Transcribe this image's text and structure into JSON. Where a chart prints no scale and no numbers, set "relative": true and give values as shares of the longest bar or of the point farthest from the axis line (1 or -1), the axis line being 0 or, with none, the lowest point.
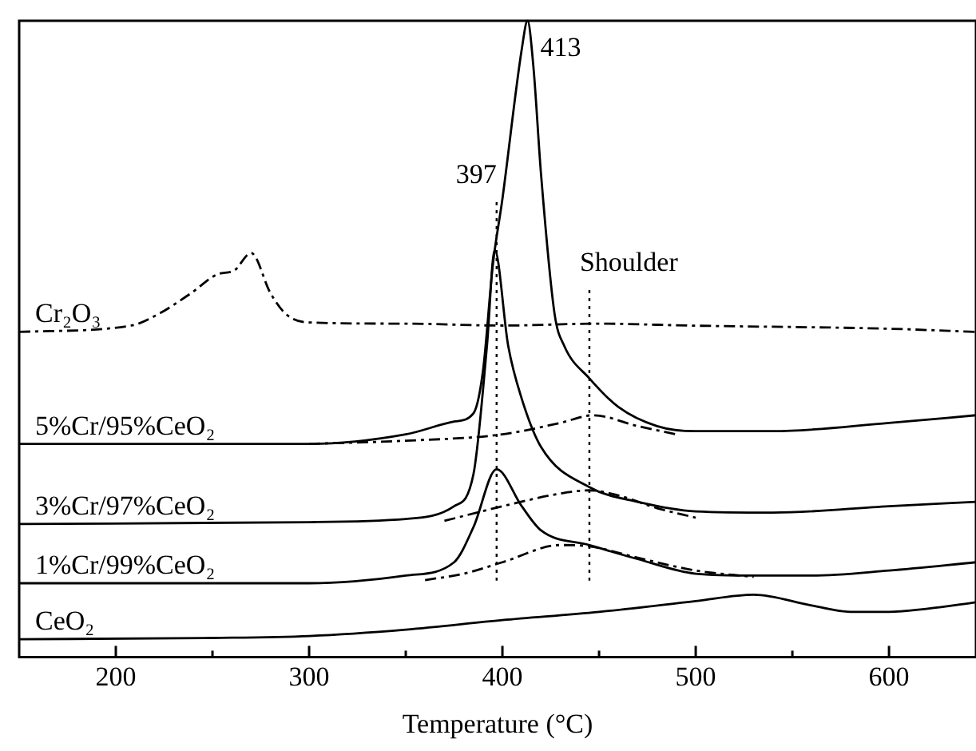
{
  "chart_data": {
    "type": "line",
    "relative": true,
    "xlabel": "Temperature (°C)",
    "xlim": [
      150,
      645
    ],
    "xticks": [
      200,
      {
        "value": 250,
        "label": null
      },
      300,
      {
        "value": 350,
        "label": null
      },
      400,
      {
        "value": 450,
        "label": null
      },
      500,
      {
        "value": 550,
        "label": null
      },
      600
    ],
    "grid": false,
    "legend": false,
    "tick_labels": "x",
    "marker": "none",
    "series": [
      {
        "name": "Cr₂O₃",
        "color": "#000000",
        "line_style": "dashed",
        "x": [
          150,
          208,
          222,
          239,
          253,
          261,
          270,
          280,
          288,
          299,
          350,
          400,
          450,
          496,
          600,
          645
        ],
        "values": [
          0.511,
          0.521,
          0.539,
          0.572,
          0.602,
          0.607,
          0.635,
          0.572,
          0.539,
          0.526,
          0.524,
          0.521,
          0.524,
          0.521,
          0.516,
          0.511
        ]
      },
      {
        "name": "5%Cr/95%CeO₂",
        "color": "#000000",
        "line_style": "solid",
        "x": [
          150,
          300,
          350,
          375,
          385,
          390,
          395,
          400,
          410,
          413,
          416,
          420,
          427,
          432,
          445,
          460,
          480,
          500,
          540,
          600,
          645
        ],
        "values": [
          0.335,
          0.335,
          0.35,
          0.37,
          0.383,
          0.451,
          0.615,
          0.72,
          0.955,
          1,
          0.929,
          0.758,
          0.539,
          0.489,
          0.438,
          0.393,
          0.363,
          0.355,
          0.355,
          0.368,
          0.38
        ]
      },
      {
        "color": "#000000",
        "line_style": "dashed",
        "x": [
          300,
          350,
          400,
          430,
          447,
          470,
          490
        ],
        "values": [
          0.335,
          0.34,
          0.35,
          0.368,
          0.38,
          0.363,
          0.35
        ]
      },
      {
        "name": "3%Cr/97%CeO₂",
        "color": "#000000",
        "line_style": "solid",
        "x": [
          150,
          300,
          350,
          375,
          385,
          392,
          396,
          403,
          410,
          420,
          445,
          470,
          500,
          540,
          600,
          645
        ],
        "values": [
          0.209,
          0.212,
          0.217,
          0.237,
          0.287,
          0.489,
          0.64,
          0.489,
          0.406,
          0.33,
          0.267,
          0.244,
          0.229,
          0.227,
          0.237,
          0.244
        ]
      },
      {
        "color": "#000000",
        "line_style": "dashed",
        "x": [
          370,
          400,
          430,
          445,
          460,
          480,
          500
        ],
        "values": [
          0.214,
          0.237,
          0.257,
          0.262,
          0.254,
          0.234,
          0.219
        ]
      },
      {
        "name": "1%Cr/99%CeO₂",
        "color": "#000000",
        "line_style": "solid",
        "x": [
          150,
          300,
          350,
          375,
          385,
          397,
          410,
          420,
          445,
          470,
          500,
          530,
          560,
          600,
          645
        ],
        "values": [
          0.116,
          0.116,
          0.128,
          0.149,
          0.204,
          0.295,
          0.237,
          0.199,
          0.176,
          0.154,
          0.131,
          0.128,
          0.128,
          0.136,
          0.149
        ]
      },
      {
        "color": "#000000",
        "line_style": "dashed",
        "x": [
          360,
          380,
          400,
          430,
          445,
          470,
          500,
          530
        ],
        "values": [
          0.121,
          0.131,
          0.149,
          0.176,
          0.174,
          0.156,
          0.136,
          0.126
        ]
      },
      {
        "name": "CeO₂",
        "color": "#000000",
        "line_style": "solid",
        "x": [
          150,
          250,
          300,
          350,
          400,
          450,
          500,
          530,
          560,
          580,
          600,
          620,
          645
        ],
        "values": [
          0.028,
          0.03,
          0.033,
          0.043,
          0.058,
          0.071,
          0.088,
          0.098,
          0.081,
          0.071,
          0.071,
          0.076,
          0.086
        ]
      }
    ],
    "ref_lines": [
      {
        "axis": "x",
        "value": 397,
        "label": "397",
        "line_style": "dotted"
      },
      {
        "axis": "x",
        "value": 445,
        "label": "Shoulder",
        "line_style": "dotted"
      }
    ],
    "annotations": [
      {
        "text": "413",
        "x": 413,
        "y": 1
      }
    ]
  }
}
